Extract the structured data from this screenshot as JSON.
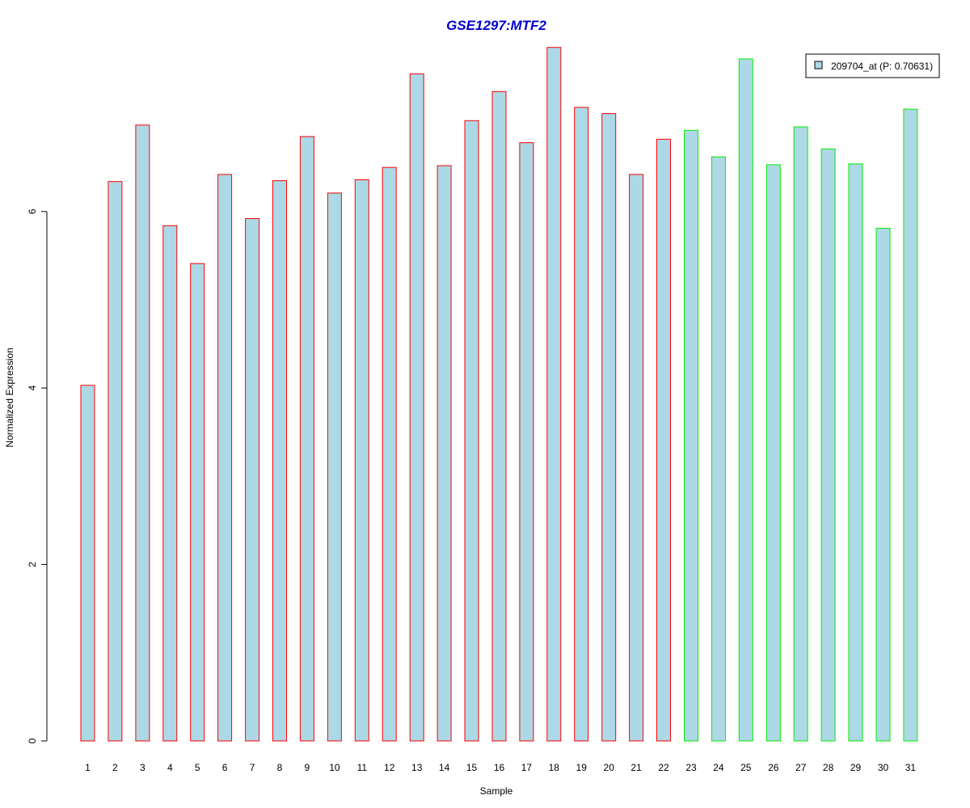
{
  "chart_data": {
    "type": "bar",
    "title": "GSE1297:MTF2",
    "xlabel": "Sample",
    "ylabel": "Normalized Expression",
    "ylim": [
      0,
      7.85
    ],
    "yticks": [
      "0",
      "2",
      "4",
      "6"
    ],
    "categories": [
      "1",
      "2",
      "3",
      "4",
      "5",
      "6",
      "7",
      "8",
      "9",
      "10",
      "11",
      "12",
      "13",
      "14",
      "15",
      "16",
      "17",
      "18",
      "19",
      "20",
      "21",
      "22",
      "23",
      "24",
      "25",
      "26",
      "27",
      "28",
      "29",
      "30",
      "31"
    ],
    "values": [
      4.03,
      6.34,
      6.98,
      5.84,
      5.41,
      6.42,
      5.92,
      6.35,
      6.85,
      6.21,
      6.36,
      6.5,
      7.56,
      6.52,
      7.03,
      7.36,
      6.78,
      7.86,
      7.18,
      7.11,
      6.42,
      6.82,
      6.92,
      6.62,
      7.73,
      6.53,
      6.96,
      6.71,
      6.54,
      5.81,
      7.16
    ],
    "group": [
      1,
      1,
      1,
      1,
      1,
      1,
      1,
      1,
      1,
      1,
      1,
      1,
      1,
      1,
      1,
      1,
      1,
      1,
      1,
      1,
      1,
      1,
      2,
      2,
      2,
      2,
      2,
      2,
      2,
      2,
      2
    ],
    "colors": {
      "bar_fill": "#add8e6",
      "group1_border": "#ff0000",
      "group2_border": "#00ee00",
      "title": "#0000cc"
    },
    "legend": {
      "label": "209704_at (P: 0.70631)",
      "placement": "top-right"
    },
    "grid": false
  }
}
